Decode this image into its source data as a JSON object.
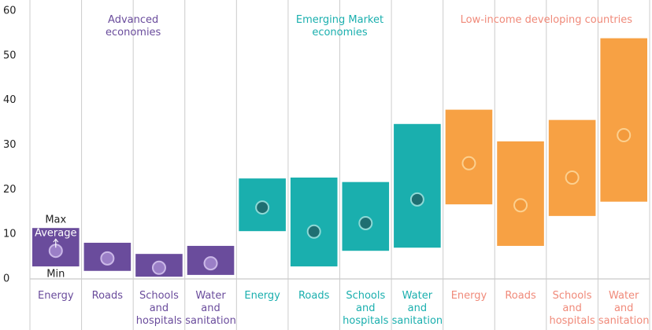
{
  "chart_data": {
    "type": "range",
    "ylim": [
      0,
      60
    ],
    "yticks": [
      0,
      10,
      20,
      30,
      40,
      50,
      60
    ],
    "annotations": {
      "max": "Max",
      "average": "Average",
      "min": "Min"
    },
    "series": [
      {
        "name": "Advanced economies",
        "color": "#6a4c9c",
        "label_color": "#6a4c9c",
        "dot_color": "#9b7fc7",
        "dot_stroke": "#cbb8e8",
        "categories": [
          "Energy",
          "Roads",
          "Schools and hospitals",
          "Water and sanitation"
        ],
        "min": [
          2.8,
          1.8,
          0.5,
          0.9
        ],
        "max": [
          11.4,
          8.1,
          5.6,
          7.4
        ],
        "average": [
          6.3,
          4.6,
          2.5,
          3.5
        ]
      },
      {
        "name": "Emerging Market economies",
        "color": "#1aafae",
        "label_color": "#1aafae",
        "dot_color": "#1f6f72",
        "dot_stroke": "#8ed9d6",
        "categories": [
          "Energy",
          "Roads",
          "Schools and hospitals",
          "Water and sanitation"
        ],
        "min": [
          10.7,
          2.8,
          6.3,
          7.0
        ],
        "max": [
          22.5,
          22.7,
          21.7,
          34.7
        ],
        "average": [
          16.0,
          10.6,
          12.5,
          17.8
        ]
      },
      {
        "name": "Low-income developing countries",
        "color": "#f7a144",
        "label_color": "#f08a7a",
        "dot_color": "#f39a3c",
        "dot_stroke": "#fcd08f",
        "categories": [
          "Energy",
          "Roads",
          "Schools and hospitals",
          "Water and sanitation"
        ],
        "min": [
          16.7,
          7.4,
          14.1,
          17.3
        ],
        "max": [
          37.9,
          30.8,
          35.6,
          53.9
        ],
        "average": [
          25.9,
          16.5,
          22.7,
          32.2
        ]
      }
    ]
  }
}
